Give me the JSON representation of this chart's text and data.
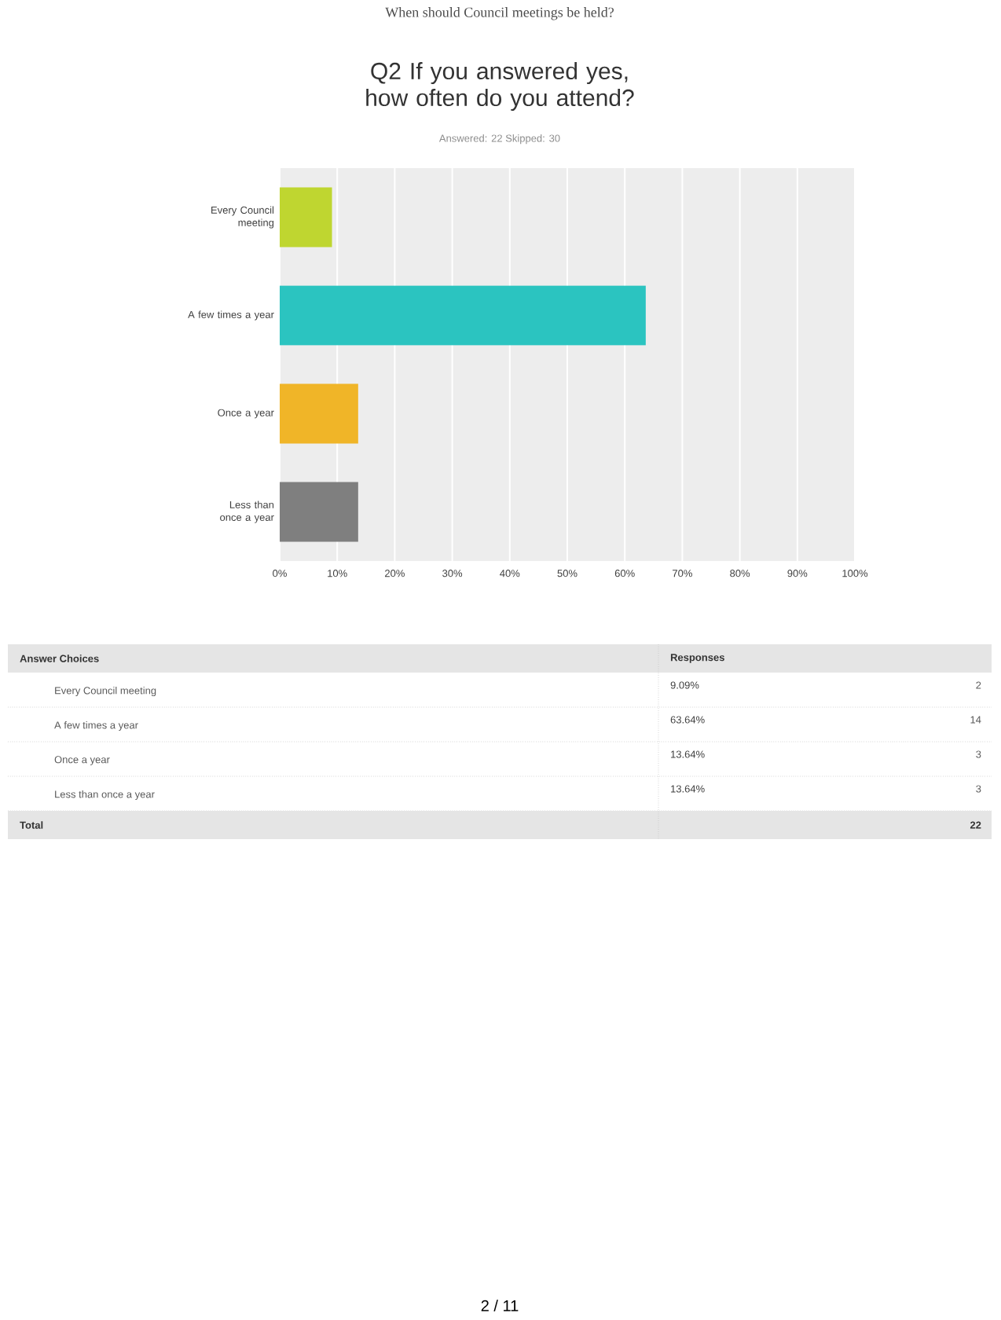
{
  "chart_data": [
    {
      "type": "bar",
      "orientation": "horizontal",
      "title": "Q2 If you answered yes, how often do you attend?",
      "subtitle": "Answered: 22    Skipped: 30",
      "categories": [
        "Every Council meeting",
        "A few times a year",
        "Once a year",
        "Less than once a year"
      ],
      "values": [
        9.09,
        63.64,
        13.64,
        13.64
      ],
      "value_labels": [
        "9.09%",
        "63.64%",
        "13.64%",
        "13.64%"
      ],
      "colors": [
        "#bfd630",
        "#2bc4c0",
        "#f0b528",
        "#7f7f7f"
      ],
      "xlim": [
        0,
        100
      ],
      "xticks": [
        {
          "value": 0,
          "label": "0%"
        },
        {
          "value": 10,
          "label": "10%"
        },
        {
          "value": 20,
          "label": "20%"
        },
        {
          "value": 30,
          "label": "30%"
        },
        {
          "value": 40,
          "label": "40%"
        },
        {
          "value": 50,
          "label": "50%"
        },
        {
          "value": 60,
          "label": "60%"
        },
        {
          "value": 70,
          "label": "70%"
        },
        {
          "value": 80,
          "label": "80%"
        },
        {
          "value": 90,
          "label": "90%"
        },
        {
          "value": 100,
          "label": "100%"
        }
      ],
      "grid": "x",
      "annotations": [
        "When should Council meetings be held?",
        "2 / 11"
      ]
    },
    {
      "type": "other",
      "xlabel": "Answer Choices",
      "ylabel": "Responses",
      "categories": [
        "Every Council meeting",
        "A few times a year",
        "Once a year",
        "Less than once a year"
      ],
      "values": [
        2,
        14,
        3,
        3
      ],
      "data_labels": true,
      "annotations": [
        "Total",
        "22"
      ]
    }
  ]
}
